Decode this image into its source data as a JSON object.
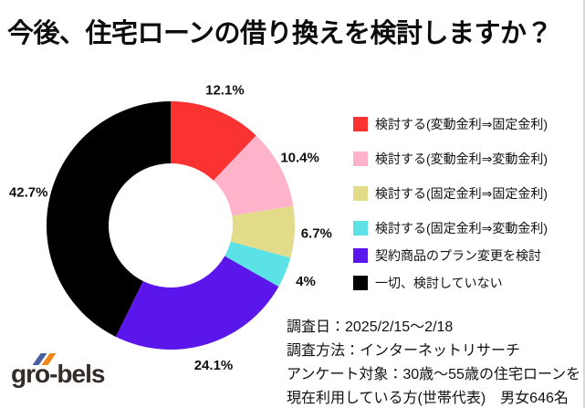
{
  "title": "今後、住宅ローンの借り換えを検討しますか？",
  "chart_data": {
    "type": "pie",
    "donut": true,
    "start_angle_deg": 0,
    "direction": "clockwise",
    "legend_position": "right",
    "slices": [
      {
        "label": "検討する(変動金利⇒固定金利)",
        "value": 12.1,
        "pct_label": "12.1%",
        "color": "#FB3232"
      },
      {
        "label": "検討する(変動金利⇒変動金利)",
        "value": 10.4,
        "pct_label": "10.4%",
        "color": "#FFB3CB"
      },
      {
        "label": "検討する(固定金利⇒固定金利)",
        "value": 6.7,
        "pct_label": "6.7%",
        "color": "#E2DC8A"
      },
      {
        "label": "検討する(固定金利⇒変動金利)",
        "value": 4.0,
        "pct_label": "4%",
        "color": "#5CE1E6"
      },
      {
        "label": "契約商品のプラン変更を検討",
        "value": 24.1,
        "pct_label": "24.1%",
        "color": "#5B17EB"
      },
      {
        "label": "一切、検討していない",
        "value": 42.7,
        "pct_label": "42.7%",
        "color": "#000000"
      }
    ]
  },
  "survey_info": {
    "line1": "調査日：2025/2/15～2/18",
    "line2": "調査方法：インターネットリサーチ",
    "line3": "アンケート対象：30歳～55歳の住宅ローンを",
    "line4": "現在利用している方(世帯代表)　男女646名"
  },
  "logo": {
    "text": "gro-bels",
    "slash_blue": "#4A5FA0",
    "slash_orange": "#F08519"
  }
}
